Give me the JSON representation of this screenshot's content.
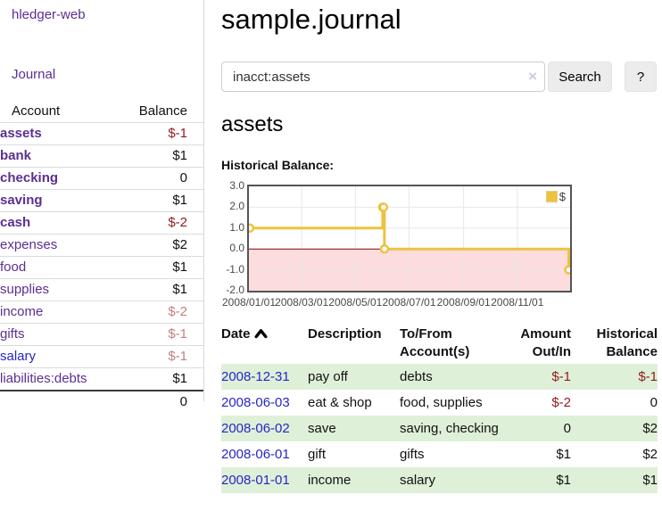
{
  "colors": {
    "link_purple": "#5b2f91",
    "link_blue": "#2526c9",
    "negative_strong": "#941a1d",
    "negative_muted": "#c38181",
    "row_green": "#dff0d8",
    "series_gold": "#edc240"
  },
  "sidebar": {
    "brand": "hledger-web",
    "nav": {
      "journal": "Journal"
    },
    "accounts": {
      "headers": {
        "account": "Account",
        "balance": "Balance"
      },
      "rows": [
        {
          "name": "assets",
          "balance": "$-1"
        },
        {
          "name": "bank",
          "balance": "$1"
        },
        {
          "name": "checking",
          "balance": "0"
        },
        {
          "name": "saving",
          "balance": "$1"
        },
        {
          "name": "cash",
          "balance": "$-2"
        },
        {
          "name": "expenses",
          "balance": "$2"
        },
        {
          "name": "food",
          "balance": "$1"
        },
        {
          "name": "supplies",
          "balance": "$1"
        },
        {
          "name": "income",
          "balance": "$-2"
        },
        {
          "name": "gifts",
          "balance": "$-1"
        },
        {
          "name": "salary",
          "balance": "$-1"
        },
        {
          "name": "liabilities:debts",
          "balance": "$1"
        }
      ],
      "total": "0"
    }
  },
  "header": {
    "title": "sample.journal"
  },
  "search": {
    "value": "inacct:assets",
    "clear_glyph": "×",
    "button": "Search",
    "help_button": "?"
  },
  "register": {
    "account_heading": "assets",
    "chart_heading": "Historical Balance:",
    "table": {
      "headers": {
        "date": "Date",
        "description": "Description",
        "accounts": "To/From Account(s)",
        "amount": "Amount Out/In",
        "balance": "Historical Balance"
      },
      "rows": [
        {
          "date": "2008-12-31",
          "description": "pay off",
          "accounts": "debts",
          "amount": "$-1",
          "balance": "$-1"
        },
        {
          "date": "2008-06-03",
          "description": "eat & shop",
          "accounts": "food, supplies",
          "amount": "$-2",
          "balance": "0"
        },
        {
          "date": "2008-06-02",
          "description": "save",
          "accounts": "saving, checking",
          "amount": "0",
          "balance": "$2"
        },
        {
          "date": "2008-06-01",
          "description": "gift",
          "accounts": "gifts",
          "amount": "$1",
          "balance": "$2"
        },
        {
          "date": "2008-01-01",
          "description": "income",
          "accounts": "salary",
          "amount": "$1",
          "balance": "$1"
        }
      ]
    }
  },
  "chart_data": {
    "type": "line",
    "step": true,
    "title": "Historical Balance:",
    "series": [
      {
        "name": "$",
        "color": "#edc240",
        "x_days": [
          0,
          152,
          153,
          154,
          365
        ],
        "x_dates": [
          "2008-01-01",
          "2008-06-01",
          "2008-06-02",
          "2008-06-03",
          "2008-12-31"
        ],
        "values": [
          1,
          2,
          2,
          0,
          -1
        ]
      }
    ],
    "x_range_days": [
      0,
      365
    ],
    "x_ticks": [
      "2008/01/01",
      "2008/03/01",
      "2008/05/01",
      "2008/07/01",
      "2008/09/01",
      "2008/11/01"
    ],
    "x_tick_days": [
      0,
      60,
      121,
      182,
      244,
      305
    ],
    "y_ticks": [
      "3.0",
      "2.0",
      "1.0",
      "0.0",
      "-1.0",
      "-2.0"
    ],
    "ylim": [
      -2,
      3
    ],
    "grid": true,
    "negative_region_fill": "#fcdcdc",
    "zero_line_color": "#8b0000",
    "legend": {
      "label": "$",
      "position": "top-right"
    }
  }
}
